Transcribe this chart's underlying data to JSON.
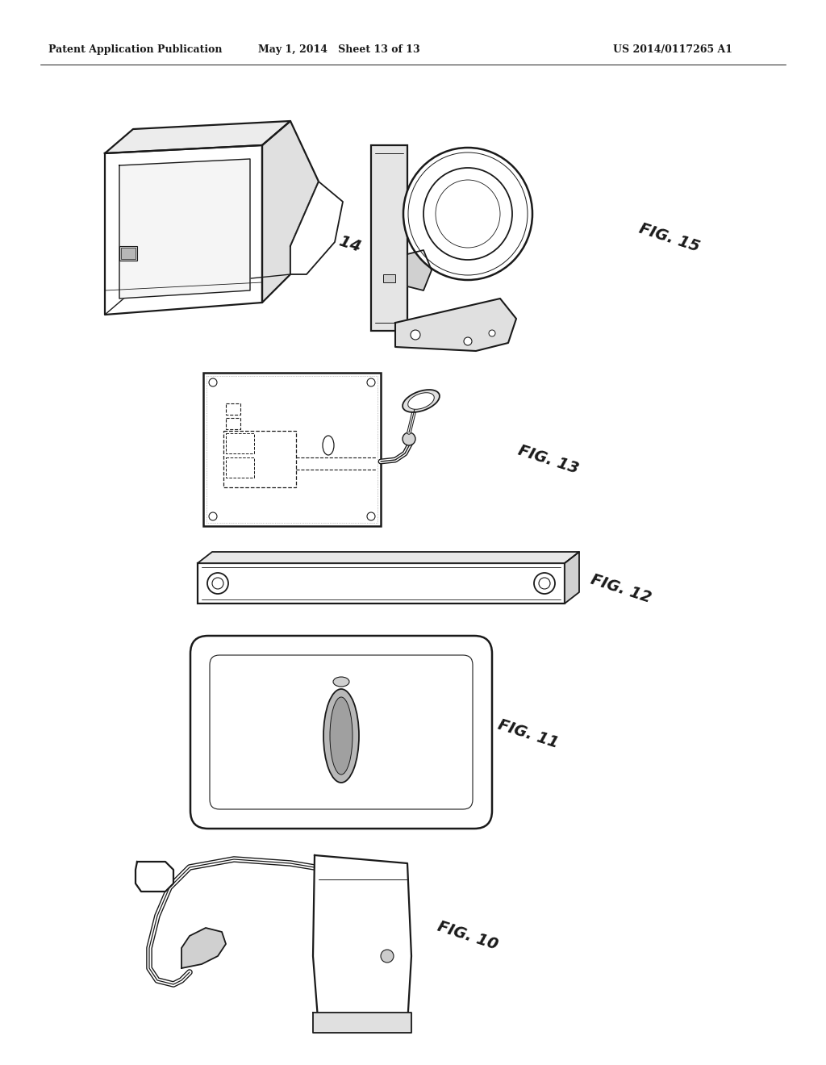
{
  "background_color": "#ffffff",
  "header_left": "Patent Application Publication",
  "header_center": "May 1, 2014   Sheet 13 of 13",
  "header_right": "US 2014/0117265 A1",
  "fig_labels": {
    "fig14": "FIG. 14",
    "fig15": "FIG. 15",
    "fig13": "FIG. 13",
    "fig12": "FIG. 12",
    "fig11": "FIG. 11",
    "fig10": "FIG. 10"
  },
  "line_color": "#1a1a1a",
  "page_width": 10.24,
  "page_height": 13.2
}
